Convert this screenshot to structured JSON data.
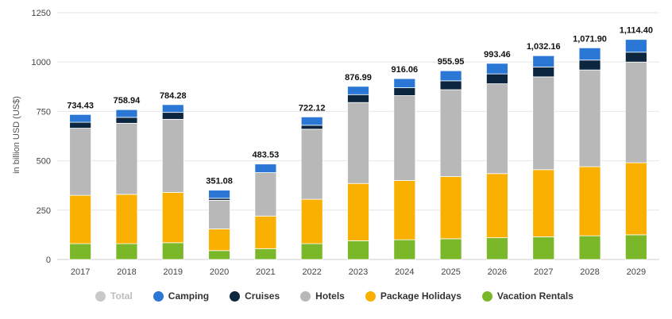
{
  "chart_data": {
    "type": "bar",
    "stacked": true,
    "ylabel": "in billion USD (US$)",
    "ylim": [
      0,
      1250
    ],
    "yticks": [
      0,
      250,
      500,
      750,
      1000,
      1250
    ],
    "grid": true,
    "legend_position": "bottom",
    "categories": [
      "2017",
      "2018",
      "2019",
      "2020",
      "2021",
      "2022",
      "2023",
      "2024",
      "2025",
      "2026",
      "2027",
      "2028",
      "2029"
    ],
    "totals": [
      "734.43",
      "758.94",
      "784.28",
      "351.08",
      "483.53",
      "722.12",
      "876.99",
      "916.06",
      "955.95",
      "993.46",
      "1,032.16",
      "1,071.90",
      "1,114.40"
    ],
    "total_values": [
      734.43,
      758.94,
      784.28,
      351.08,
      483.53,
      722.12,
      876.99,
      916.06,
      955.95,
      993.46,
      1032.16,
      1071.9,
      1114.4
    ],
    "series": [
      {
        "name": "Vacation Rentals",
        "color": "#7ab829",
        "values": [
          80,
          80,
          85,
          45,
          55,
          80,
          95,
          100,
          105,
          110,
          115,
          120,
          125
        ]
      },
      {
        "name": "Package Holidays",
        "color": "#f9b000",
        "values": [
          245,
          250,
          255,
          110,
          165,
          225,
          290,
          300,
          315,
          325,
          340,
          350,
          365
        ]
      },
      {
        "name": "Hotels",
        "color": "#b8b8b8",
        "values": [
          340,
          360,
          370,
          145,
          220,
          355,
          410,
          430,
          440,
          455,
          470,
          490,
          510
        ]
      },
      {
        "name": "Cruises",
        "color": "#0d2640",
        "values": [
          30,
          30,
          35,
          10,
          0,
          20,
          40,
          40,
          45,
          50,
          50,
          50,
          50
        ]
      },
      {
        "name": "Camping",
        "color": "#2a77d6",
        "values": [
          39.43,
          38.94,
          39.28,
          41.08,
          43.53,
          42.12,
          41.99,
          46.06,
          50.95,
          53.46,
          57.16,
          61.9,
          64.4
        ]
      }
    ]
  },
  "legend": [
    {
      "label": "Total",
      "color": "#c9c9c9",
      "dim": true
    },
    {
      "label": "Camping",
      "color": "#2a77d6"
    },
    {
      "label": "Cruises",
      "color": "#0d2640"
    },
    {
      "label": "Hotels",
      "color": "#b8b8b8"
    },
    {
      "label": "Package Holidays",
      "color": "#f9b000"
    },
    {
      "label": "Vacation Rentals",
      "color": "#7ab829"
    }
  ]
}
